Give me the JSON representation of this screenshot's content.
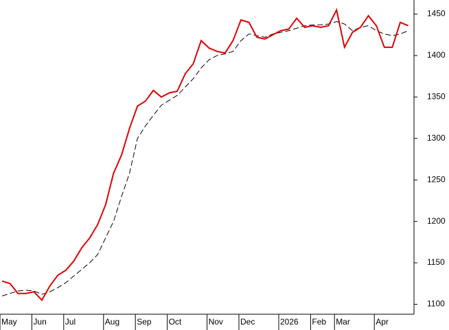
{
  "chart_data": {
    "type": "line",
    "categories": [
      "May",
      null,
      null,
      null,
      "Jun",
      null,
      null,
      null,
      "Jul",
      null,
      null,
      null,
      null,
      "Aug",
      null,
      null,
      null,
      "Sep",
      null,
      null,
      null,
      "Oct",
      null,
      null,
      null,
      null,
      "Nov",
      null,
      null,
      null,
      "Dec",
      null,
      null,
      null,
      null,
      "2026",
      null,
      null,
      null,
      "Feb",
      null,
      null,
      "Mar",
      null,
      null,
      null,
      null,
      "Apr",
      null,
      null,
      null,
      null
    ],
    "series": [
      {
        "color": "#e00000",
        "dashed": false,
        "values": [
          1128,
          1125,
          1113,
          1113,
          1115,
          1105,
          1122,
          1135,
          1141,
          1152,
          1168,
          1180,
          1196,
          1220,
          1258,
          1280,
          1312,
          1339,
          1345,
          1358,
          1350,
          1355,
          1357,
          1378,
          1390,
          1418,
          1409,
          1405,
          1403,
          1418,
          1443,
          1440,
          1422,
          1420,
          1425,
          1430,
          1432,
          1445,
          1434,
          1436,
          1434,
          1436,
          1455,
          1410,
          1428,
          1434,
          1448,
          1436,
          1410,
          1410,
          1440,
          1436
        ]
      },
      {
        "color": "#000000",
        "dashed": true,
        "values": [
          1110,
          1113,
          1116,
          1117,
          1116,
          1112,
          1115,
          1120,
          1126,
          1134,
          1142,
          1150,
          1160,
          1180,
          1200,
          1230,
          1258,
          1300,
          1315,
          1328,
          1340,
          1346,
          1352,
          1362,
          1372,
          1385,
          1395,
          1400,
          1402,
          1405,
          1418,
          1426,
          1424,
          1422,
          1426,
          1428,
          1430,
          1433,
          1436,
          1437,
          1437,
          1438,
          1441,
          1438,
          1430,
          1434,
          1436,
          1430,
          1426,
          1424,
          1426,
          1430
        ]
      }
    ],
    "ylim": [
      1088,
      1467
    ],
    "yticks": [
      1100,
      1150,
      1200,
      1250,
      1300,
      1350,
      1400,
      1450
    ],
    "grid": false
  }
}
